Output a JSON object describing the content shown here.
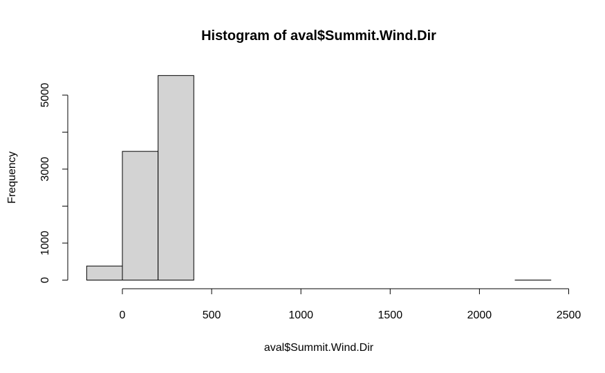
{
  "chart_data": {
    "type": "bar",
    "title": "Histogram of aval$Summit.Wind.Dir",
    "xlabel": "aval$Summit.Wind.Dir",
    "ylabel": "Frequency",
    "bins": [
      {
        "from": -200,
        "to": 0,
        "count": 380
      },
      {
        "from": 0,
        "to": 200,
        "count": 3480
      },
      {
        "from": 200,
        "to": 400,
        "count": 5530
      },
      {
        "from": 400,
        "to": 600,
        "count": 0
      },
      {
        "from": 600,
        "to": 800,
        "count": 0
      },
      {
        "from": 800,
        "to": 1000,
        "count": 0
      },
      {
        "from": 1000,
        "to": 1200,
        "count": 0
      },
      {
        "from": 1200,
        "to": 1400,
        "count": 0
      },
      {
        "from": 1400,
        "to": 1600,
        "count": 0
      },
      {
        "from": 1600,
        "to": 1800,
        "count": 0
      },
      {
        "from": 1800,
        "to": 2000,
        "count": 0
      },
      {
        "from": 2000,
        "to": 2200,
        "count": 0
      },
      {
        "from": 2200,
        "to": 2400,
        "count": 1
      }
    ],
    "x_ticks": [
      0,
      500,
      1000,
      1500,
      2000,
      2500
    ],
    "x_tick_labels": [
      "0",
      "500",
      "1000",
      "1500",
      "2000",
      "2500"
    ],
    "y_ticks": [
      0,
      1000,
      2000,
      3000,
      4000,
      5000
    ],
    "y_tick_labels": [
      "0",
      "1000",
      "",
      "3000",
      "",
      "5000"
    ],
    "xlim": [
      -200,
      2500
    ],
    "ylim": [
      0,
      5500
    ],
    "grid": false,
    "bar_fill": "#d3d3d3",
    "bar_stroke": "#000000"
  }
}
